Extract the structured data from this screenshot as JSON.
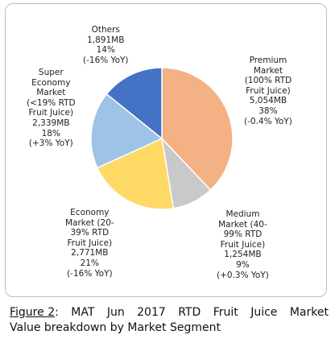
{
  "chart_data": {
    "type": "pie",
    "slices": [
      {
        "name": "Premium Market (100% RTD Fruit Juice)",
        "value_label": "5,054MB",
        "percent": 38,
        "yoy": "(-0.4% YoY)",
        "value": 5054,
        "color": "#F4B183",
        "label_lines": [
          "Premium",
          "Market",
          "(100% RTD",
          "Fruit Juice)",
          "5,054MB",
          "38%",
          "(-0.4% YoY)"
        ]
      },
      {
        "name": "Medium Market (40-99% RTD Fruit Juice)",
        "value_label": "1,254MB",
        "percent": 9,
        "yoy": "(+0.3% YoY)",
        "value": 1254,
        "color": "#C9C9C9",
        "label_lines": [
          "Medium",
          "Market (40-",
          "99% RTD",
          "Fruit Juice)",
          "1,254MB",
          "9%",
          "(+0.3% YoY)"
        ]
      },
      {
        "name": "Economy Market (20-39% RTD Fruit Juice)",
        "value_label": "2,771MB",
        "percent": 21,
        "yoy": "(-16% YoY)",
        "value": 2771,
        "color": "#FFD966",
        "label_lines": [
          "Economy",
          "Market (20-",
          "39% RTD",
          "Fruit Juice)",
          "2,771MB",
          "21%",
          "(-16% YoY)"
        ]
      },
      {
        "name": "Super Economy Market (<19% RTD Fruit Juice)",
        "value_label": "2,339MB",
        "percent": 18,
        "yoy": "(+3% YoY)",
        "value": 2339,
        "color": "#9DC3E6",
        "label_lines": [
          "Super",
          "Economy",
          "Market",
          "(<19% RTD",
          "Fruit Juice)",
          "2,339MB",
          "18%",
          "(+3% YoY)"
        ]
      },
      {
        "name": "Others",
        "value_label": "1,891MB",
        "percent": 14,
        "yoy": "(-16% YoY)",
        "value": 1891,
        "color": "#4472C4",
        "label_lines": [
          "Others",
          "1,891MB",
          "14%",
          "(-16% YoY)"
        ]
      }
    ]
  },
  "caption": {
    "figure_ref": "Figure 2",
    "line1_words": [
      ":",
      "MAT",
      "Jun",
      "2017",
      "RTD",
      "Fruit",
      "Juice",
      "Market"
    ],
    "line2": "Value breakdown by Market Segment"
  }
}
